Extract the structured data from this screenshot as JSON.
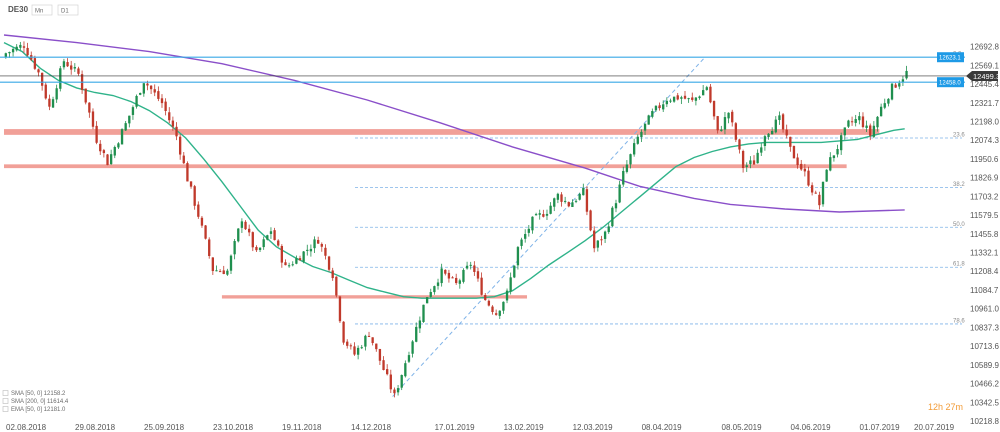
{
  "header": {
    "symbol": "DE30",
    "interval_a": "Mn",
    "interval_b": "D1"
  },
  "countdown": "12h 27m",
  "legend": [
    {
      "label": "SMA [50, 0] 12158.2",
      "color": "#2fb38a"
    },
    {
      "label": "SMA [200, 0] 11614.4",
      "color": "#8a4fc9"
    },
    {
      "label": "EMA [50, 0] 12181.0",
      "color": "#4a6fa5"
    }
  ],
  "colors": {
    "up": "#1f8f4e",
    "down": "#c0392b",
    "zone": "#ef8f86",
    "hline": "#39a8e6",
    "current": "#333333",
    "sma50": "#2fb38a",
    "sma200": "#8a4fc9",
    "fib": "#7fb3e8",
    "badge": "#1e9ae6"
  },
  "chart_data": {
    "type": "candlestick",
    "y_axis": {
      "min": 10218.6,
      "max": 12816.2,
      "position": "right",
      "ticks": [
        "12692.8",
        "12569.1",
        "12445.4",
        "12321.7",
        "12198.0",
        "12074.3",
        "11950.6",
        "11826.9",
        "11703.2",
        "11579.5",
        "11455.8",
        "11332.1",
        "11208.4",
        "11084.7",
        "10961.0",
        "10837.3",
        "10713.6",
        "10589.9",
        "10466.2",
        "10342.5",
        "10218.8"
      ]
    },
    "x_axis": {
      "ticks": [
        "02.08.2018",
        "29.08.2018",
        "25.09.2018",
        "23.10.2018",
        "19.11.2018",
        "14.12.2018",
        "17.01.2019",
        "13.02.2019",
        "12.03.2019",
        "08.04.2019",
        "08.05.2019",
        "04.06.2019",
        "01.07.2019",
        "20.07.2019"
      ],
      "tick_index": [
        0,
        19,
        38,
        57,
        76,
        95,
        118,
        137,
        156,
        175,
        197,
        216,
        235,
        250
      ]
    },
    "horizontal_levels": [
      {
        "value": 12623.1,
        "label": "12623.1"
      },
      {
        "value": 12458.0,
        "label": "12458.0"
      }
    ],
    "current_price": {
      "value": 12499.3,
      "label": "12499.3"
    },
    "zones": [
      {
        "from": 12110,
        "to": 12148,
        "start_index": 0,
        "end_index": 241
      },
      {
        "from": 11890,
        "to": 11915,
        "start_index": 0,
        "end_index": 232
      },
      {
        "from": 11028,
        "to": 11050,
        "start_index": 60,
        "end_index": 144
      }
    ],
    "fibonacci": [
      {
        "label": "0.0",
        "value": 12623.1
      },
      {
        "label": "23.6",
        "value": 12089
      },
      {
        "label": "38.2",
        "value": 11762
      },
      {
        "label": "50.0",
        "value": 11499
      },
      {
        "label": "61.8",
        "value": 11235
      },
      {
        "label": "78.6",
        "value": 10860
      }
    ],
    "trendline": {
      "from": {
        "index": 107,
        "value": 10380
      },
      "to": {
        "index": 193,
        "value": 12623.1
      }
    },
    "anchors": [
      [
        0,
        12650
      ],
      [
        5,
        12705
      ],
      [
        9,
        12520
      ],
      [
        12,
        12290
      ],
      [
        16,
        12600
      ],
      [
        20,
        12510
      ],
      [
        25,
        12080
      ],
      [
        28,
        11930
      ],
      [
        33,
        12180
      ],
      [
        38,
        12470
      ],
      [
        43,
        12320
      ],
      [
        47,
        12100
      ],
      [
        50,
        11820
      ],
      [
        53,
        11580
      ],
      [
        57,
        11220
      ],
      [
        61,
        11210
      ],
      [
        65,
        11560
      ],
      [
        69,
        11320
      ],
      [
        73,
        11480
      ],
      [
        77,
        11230
      ],
      [
        81,
        11310
      ],
      [
        86,
        11420
      ],
      [
        90,
        11190
      ],
      [
        93,
        10760
      ],
      [
        96,
        10660
      ],
      [
        100,
        10800
      ],
      [
        104,
        10560
      ],
      [
        107,
        10380
      ],
      [
        112,
        10760
      ],
      [
        116,
        11050
      ],
      [
        120,
        11200
      ],
      [
        124,
        11120
      ],
      [
        128,
        11260
      ],
      [
        132,
        11020
      ],
      [
        135,
        10930
      ],
      [
        138,
        11060
      ],
      [
        141,
        11360
      ],
      [
        145,
        11540
      ],
      [
        149,
        11610
      ],
      [
        152,
        11710
      ],
      [
        155,
        11650
      ],
      [
        159,
        11730
      ],
      [
        162,
        11360
      ],
      [
        165,
        11460
      ],
      [
        168,
        11680
      ],
      [
        170,
        11850
      ],
      [
        174,
        12090
      ],
      [
        178,
        12250
      ],
      [
        182,
        12350
      ],
      [
        186,
        12360
      ],
      [
        189,
        12330
      ],
      [
        193,
        12430
      ],
      [
        196,
        12120
      ],
      [
        199,
        12260
      ],
      [
        203,
        11900
      ],
      [
        206,
        11930
      ],
      [
        209,
        12120
      ],
      [
        213,
        12210
      ],
      [
        216,
        12010
      ],
      [
        220,
        11850
      ],
      [
        224,
        11650
      ],
      [
        226,
        11900
      ],
      [
        229,
        12030
      ],
      [
        232,
        12180
      ],
      [
        235,
        12220
      ],
      [
        238,
        12110
      ],
      [
        241,
        12290
      ],
      [
        244,
        12420
      ],
      [
        248,
        12520
      ]
    ],
    "sma50_points": [
      [
        0,
        12720
      ],
      [
        5,
        12660
      ],
      [
        10,
        12550
      ],
      [
        15,
        12470
      ],
      [
        20,
        12420
      ],
      [
        25,
        12390
      ],
      [
        30,
        12370
      ],
      [
        35,
        12330
      ],
      [
        40,
        12270
      ],
      [
        45,
        12190
      ],
      [
        50,
        12090
      ],
      [
        55,
        11950
      ],
      [
        60,
        11800
      ],
      [
        65,
        11640
      ],
      [
        70,
        11480
      ],
      [
        75,
        11370
      ],
      [
        80,
        11300
      ],
      [
        85,
        11240
      ],
      [
        90,
        11200
      ],
      [
        95,
        11150
      ],
      [
        100,
        11100
      ],
      [
        105,
        11070
      ],
      [
        110,
        11040
      ],
      [
        115,
        11030
      ],
      [
        120,
        11030
      ],
      [
        125,
        11030
      ],
      [
        130,
        11030
      ],
      [
        135,
        11040
      ],
      [
        140,
        11080
      ],
      [
        145,
        11160
      ],
      [
        150,
        11250
      ],
      [
        155,
        11330
      ],
      [
        160,
        11410
      ],
      [
        165,
        11500
      ],
      [
        170,
        11600
      ],
      [
        175,
        11700
      ],
      [
        180,
        11800
      ],
      [
        185,
        11900
      ],
      [
        190,
        11960
      ],
      [
        195,
        12000
      ],
      [
        200,
        12030
      ],
      [
        205,
        12050
      ],
      [
        210,
        12060
      ],
      [
        215,
        12060
      ],
      [
        220,
        12060
      ],
      [
        225,
        12060
      ],
      [
        230,
        12070
      ],
      [
        235,
        12080
      ],
      [
        240,
        12110
      ],
      [
        245,
        12140
      ],
      [
        248,
        12150
      ]
    ],
    "sma200_points": [
      [
        0,
        12770
      ],
      [
        20,
        12720
      ],
      [
        40,
        12660
      ],
      [
        60,
        12580
      ],
      [
        80,
        12470
      ],
      [
        100,
        12340
      ],
      [
        120,
        12190
      ],
      [
        140,
        12030
      ],
      [
        160,
        11890
      ],
      [
        175,
        11770
      ],
      [
        190,
        11690
      ],
      [
        200,
        11650
      ],
      [
        215,
        11620
      ],
      [
        230,
        11600
      ],
      [
        248,
        11614
      ]
    ]
  }
}
